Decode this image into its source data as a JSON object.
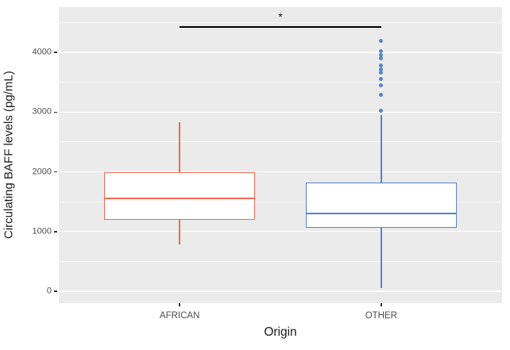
{
  "chart_data": {
    "type": "boxplot",
    "title": "",
    "xlabel": "Origin",
    "ylabel": "Circulating BAFF levels (pg/mL)",
    "ylim": [
      -200,
      4760
    ],
    "y_major_ticks": [
      0,
      1000,
      2000,
      3000,
      4000
    ],
    "y_minor_ticks": [
      500,
      1500,
      2500,
      3500,
      4500
    ],
    "categories": [
      "AFRICAN",
      "OTHER"
    ],
    "category_positions": [
      0.2727,
      0.7273
    ],
    "box_width_fraction": 0.341,
    "grid": true,
    "legend": "none",
    "panel_background": "#ebebeb",
    "gridline_color": "#ffffff",
    "tick_label_color": "#4d4d4d",
    "axis_title_color": "#1a1a1a",
    "series": [
      {
        "name": "AFRICAN",
        "color": "#ee6a55",
        "box_fill": "#ffffff",
        "whisker_low": 790,
        "q1": 1190,
        "median": 1555,
        "q3": 2000,
        "whisker_high": 2830,
        "outliers": []
      },
      {
        "name": "OTHER",
        "color": "#5285ce",
        "box_fill": "#ffffff",
        "whisker_low": 50,
        "q1": 1060,
        "median": 1300,
        "q3": 1825,
        "whisker_high": 2950,
        "outliers": [
          4200,
          4025,
          3960,
          3900,
          3780,
          3720,
          3660,
          3550,
          3450,
          3285,
          3020
        ]
      }
    ],
    "annotation": {
      "label": "*",
      "y": 4430,
      "between": [
        "AFRICAN",
        "OTHER"
      ],
      "color": "#000000"
    }
  }
}
